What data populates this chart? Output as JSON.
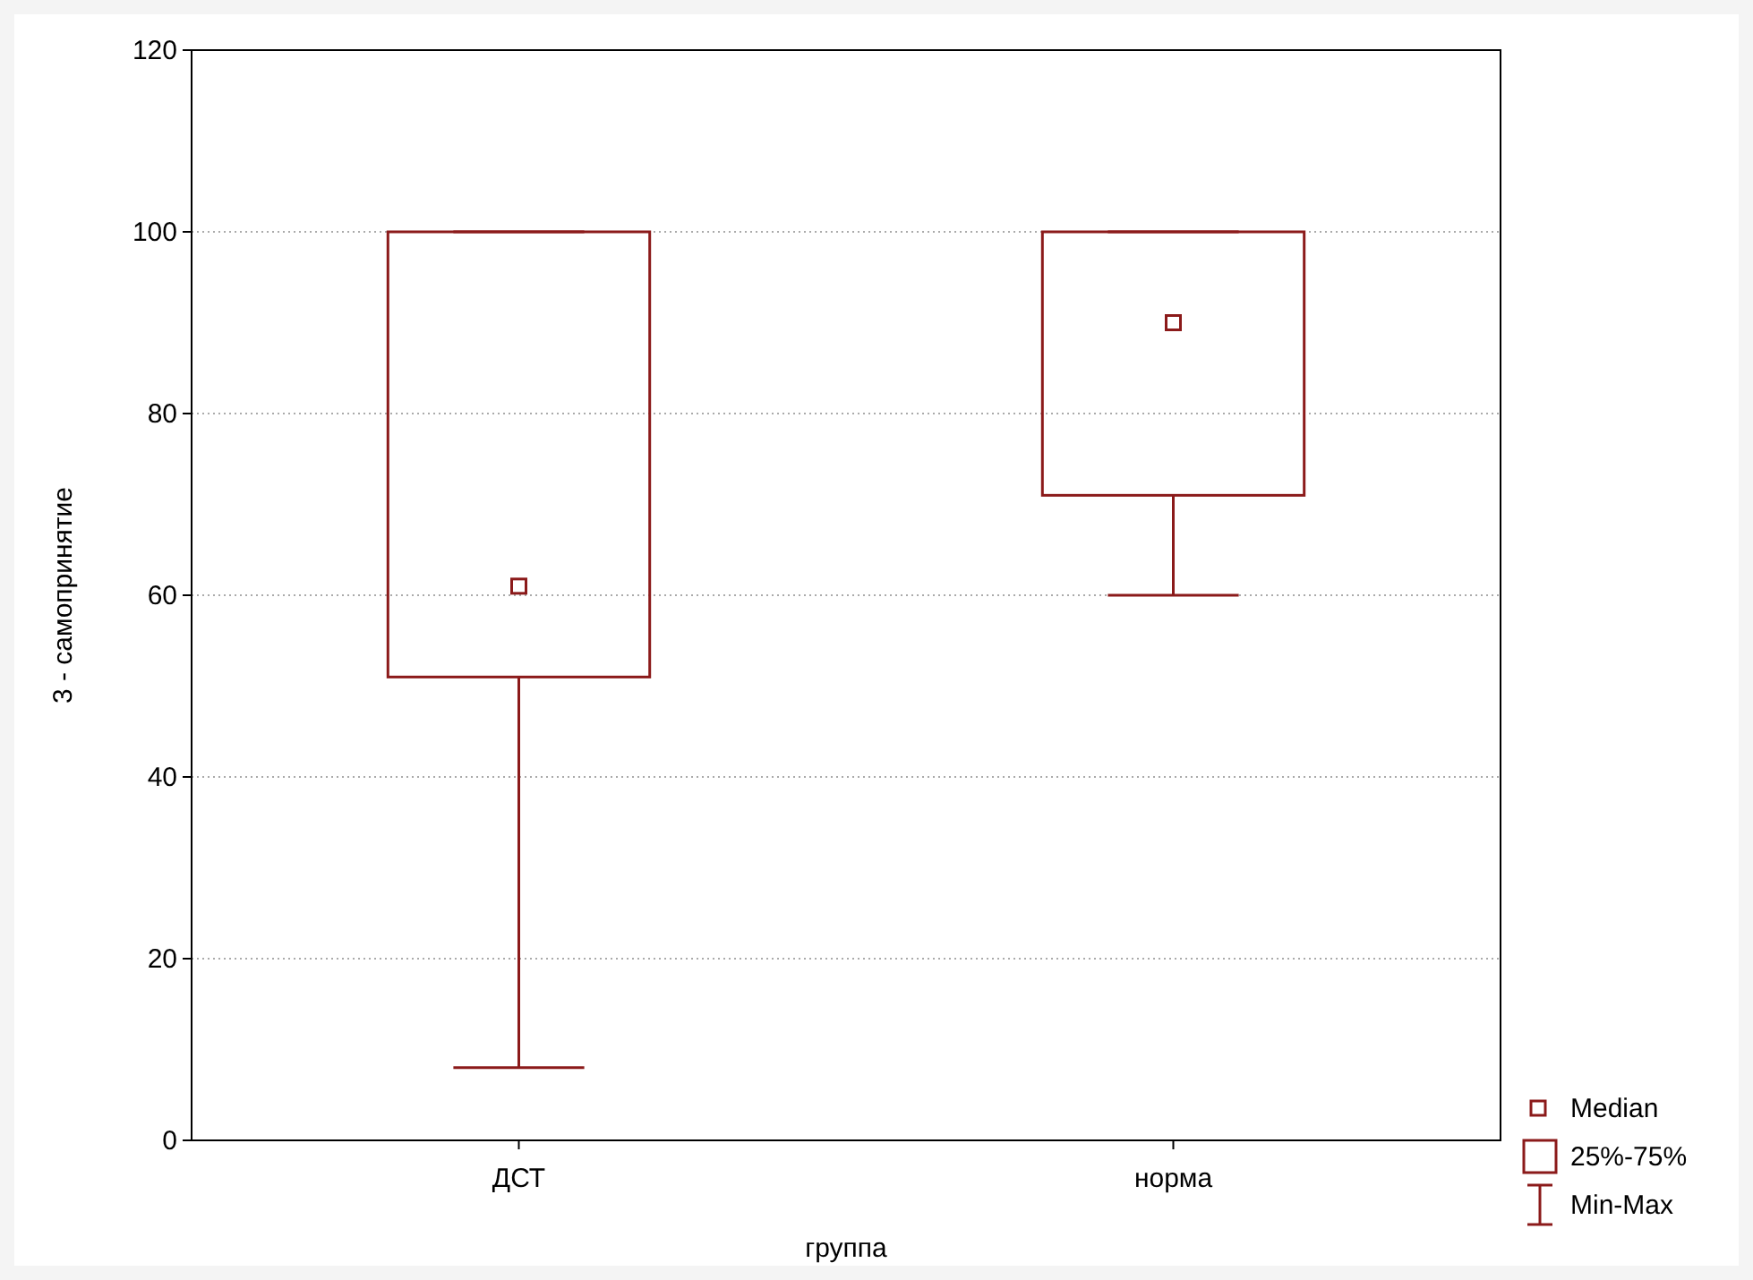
{
  "chart_data": {
    "type": "box",
    "xlabel": "группа",
    "ylabel": "3 - самопринятие",
    "categories": [
      "ДСТ",
      "норма"
    ],
    "boxes": [
      {
        "low": 8,
        "q1": 51,
        "median": 61,
        "q3": 100,
        "high": 100
      },
      {
        "low": 60,
        "q1": 71,
        "median": 90,
        "q3": 100,
        "high": 100
      }
    ],
    "color": "#8b1a1a",
    "ylim": [
      0,
      120
    ],
    "yticks": [
      0,
      20,
      40,
      60,
      80,
      100,
      120
    ],
    "grid": "y",
    "annotations": [
      "Median",
      "25%-75%",
      "Min-Max"
    ]
  }
}
